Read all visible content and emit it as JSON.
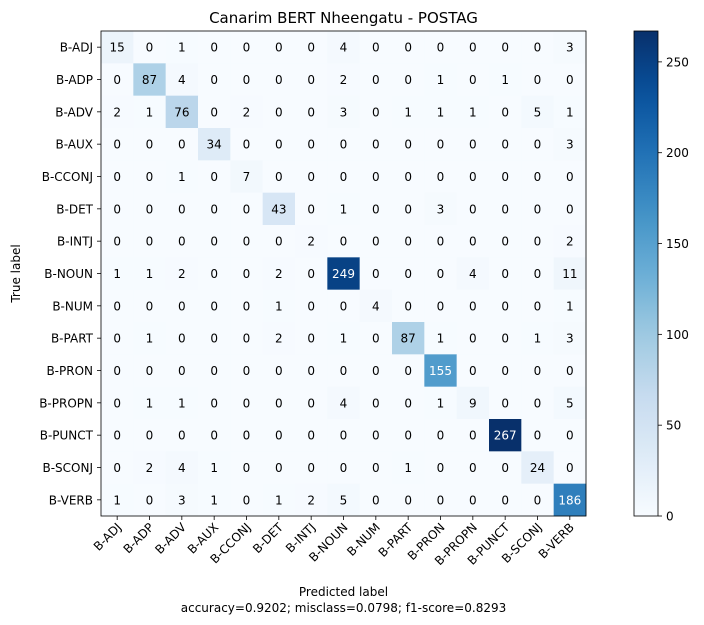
{
  "chart_data": {
    "type": "heatmap",
    "title": "Canarim BERT Nheengatu - POSTAG",
    "xlabel": "Predicted label",
    "ylabel": "True label",
    "subtitle": "accuracy=0.9202; misclass=0.0798; f1-score=0.8293",
    "labels": [
      "B-ADJ",
      "B-ADP",
      "B-ADV",
      "B-AUX",
      "B-CCONJ",
      "B-DET",
      "B-INTJ",
      "B-NOUN",
      "B-NUM",
      "B-PART",
      "B-PRON",
      "B-PROPN",
      "B-PUNCT",
      "B-SCONJ",
      "B-VERB"
    ],
    "matrix": [
      [
        15,
        0,
        1,
        0,
        0,
        0,
        0,
        4,
        0,
        0,
        0,
        0,
        0,
        0,
        3
      ],
      [
        0,
        87,
        4,
        0,
        0,
        0,
        0,
        2,
        0,
        0,
        1,
        0,
        1,
        0,
        0
      ],
      [
        2,
        1,
        76,
        0,
        2,
        0,
        0,
        3,
        0,
        1,
        1,
        1,
        0,
        5,
        1
      ],
      [
        0,
        0,
        0,
        34,
        0,
        0,
        0,
        0,
        0,
        0,
        0,
        0,
        0,
        0,
        3
      ],
      [
        0,
        0,
        1,
        0,
        7,
        0,
        0,
        0,
        0,
        0,
        0,
        0,
        0,
        0,
        0
      ],
      [
        0,
        0,
        0,
        0,
        0,
        43,
        0,
        1,
        0,
        0,
        3,
        0,
        0,
        0,
        0
      ],
      [
        0,
        0,
        0,
        0,
        0,
        0,
        2,
        0,
        0,
        0,
        0,
        0,
        0,
        0,
        2
      ],
      [
        1,
        1,
        2,
        0,
        0,
        2,
        0,
        249,
        0,
        0,
        0,
        4,
        0,
        0,
        11
      ],
      [
        0,
        0,
        0,
        0,
        0,
        1,
        0,
        0,
        4,
        0,
        0,
        0,
        0,
        0,
        1
      ],
      [
        0,
        1,
        0,
        0,
        0,
        2,
        0,
        1,
        0,
        87,
        1,
        0,
        0,
        1,
        3
      ],
      [
        0,
        0,
        0,
        0,
        0,
        0,
        0,
        0,
        0,
        0,
        155,
        0,
        0,
        0,
        0
      ],
      [
        0,
        1,
        1,
        0,
        0,
        0,
        0,
        4,
        0,
        0,
        1,
        9,
        0,
        0,
        5
      ],
      [
        0,
        0,
        0,
        0,
        0,
        0,
        0,
        0,
        0,
        0,
        0,
        0,
        267,
        0,
        0
      ],
      [
        0,
        2,
        4,
        1,
        0,
        0,
        0,
        0,
        0,
        1,
        0,
        0,
        0,
        24,
        0
      ],
      [
        1,
        0,
        3,
        1,
        0,
        1,
        2,
        5,
        0,
        0,
        0,
        0,
        0,
        0,
        186
      ]
    ],
    "colorbar": {
      "min": 0,
      "max": 267,
      "ticks": [
        0,
        50,
        100,
        150,
        200,
        250
      ]
    },
    "colormap": "Blues",
    "colors": {
      "low": "#f7fbff",
      "high": "#08306b"
    }
  }
}
